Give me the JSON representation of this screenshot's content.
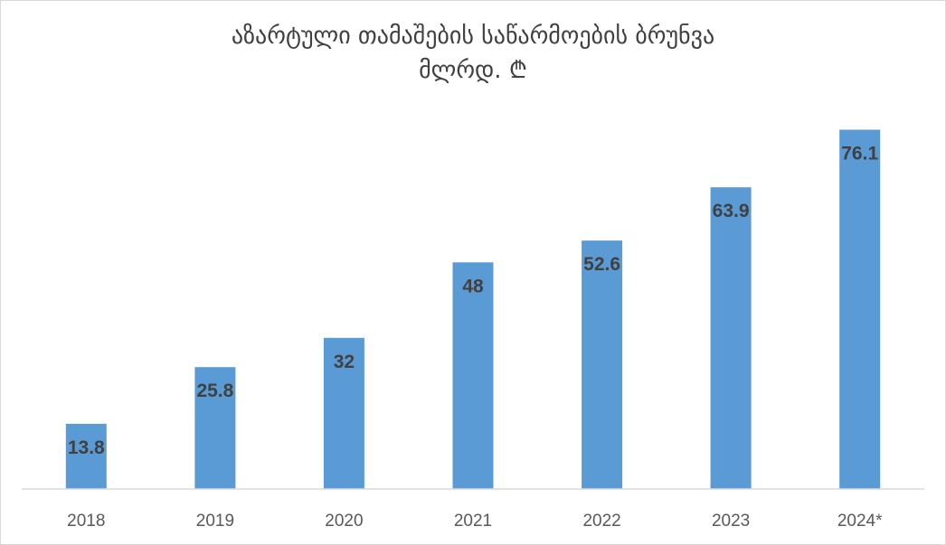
{
  "chart_data": {
    "type": "bar",
    "title": "აზარტული თამაშების საწარმოების ბრუნვა",
    "subtitle": "მლრდ. ₾",
    "categories": [
      "2018",
      "2019",
      "2020",
      "2021",
      "2022",
      "2023",
      "2024*"
    ],
    "series": [
      {
        "values": [
          13.8,
          25.8,
          32,
          48,
          52.6,
          63.9,
          76.1
        ]
      }
    ],
    "data_labels": [
      "13.8",
      "25.8",
      "32",
      "48",
      "52.6",
      "63.9",
      "76.1"
    ],
    "xlabel": "",
    "ylabel": "",
    "ylim": [
      0,
      85
    ],
    "grid": false,
    "legend": "none",
    "bar_color": "#5b9bd5",
    "label_color": "#404040"
  }
}
